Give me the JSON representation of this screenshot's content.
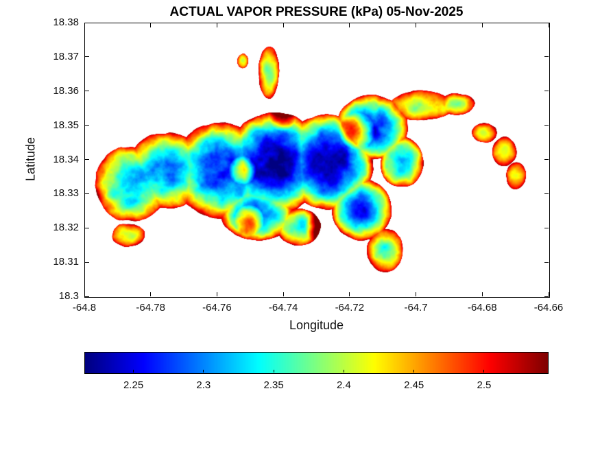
{
  "chart_data": {
    "type": "heatmap",
    "title": "ACTUAL VAPOR PRESSURE (kPa) 05-Nov-2025",
    "xlabel": "Longitude",
    "ylabel": "Latitude",
    "xlim": [
      -64.8,
      -64.66
    ],
    "ylim": [
      18.3,
      18.38
    ],
    "xticks": [
      -64.8,
      -64.78,
      -64.76,
      -64.74,
      -64.72,
      -64.7,
      -64.68,
      -64.66
    ],
    "xtick_labels": [
      "-64.8",
      "-64.78",
      "-64.76",
      "-64.74",
      "-64.72",
      "-64.7",
      "-64.68",
      "-64.66"
    ],
    "yticks": [
      18.3,
      18.31,
      18.32,
      18.33,
      18.34,
      18.35,
      18.36,
      18.37,
      18.38
    ],
    "ytick_labels": [
      "18.3",
      "18.31",
      "18.32",
      "18.33",
      "18.34",
      "18.35",
      "18.36",
      "18.37",
      "18.38"
    ],
    "grid": false,
    "colormap": "jet",
    "background_color": "#ffffff",
    "axis_color": "#000000",
    "colorbar": {
      "orientation": "horizontal",
      "range": [
        2.215,
        2.545
      ],
      "ticks": [
        2.25,
        2.3,
        2.35,
        2.4,
        2.45,
        2.5
      ],
      "tick_labels": [
        "2.25",
        "2.3",
        "2.35",
        "2.4",
        "2.45",
        "2.5"
      ]
    },
    "value_field": {
      "units": "kPa",
      "coast_value": 2.53,
      "interior_min_value": 2.22,
      "description": "Island-shaped vapor pressure map: values are highest (dark red, about 2.5 kPa) along the coastline and in lowland patches, and lowest (dark blue, about 2.22-2.25 kPa) in the island interior; white is no-data (ocean).",
      "island_blobs": [
        [
          -64.786,
          18.333,
          0.011,
          0.011,
          0.6
        ],
        [
          -64.775,
          18.337,
          0.013,
          0.011,
          0.65
        ],
        [
          -64.787,
          18.318,
          0.005,
          0.0035,
          0.3
        ],
        [
          -64.759,
          18.337,
          0.015,
          0.014,
          0.8
        ],
        [
          -64.743,
          18.339,
          0.015,
          0.015,
          1.0
        ],
        [
          -64.748,
          18.3245,
          0.011,
          0.008,
          0.7
        ],
        [
          -64.7445,
          18.3655,
          0.0032,
          0.0075,
          0.35
        ],
        [
          -64.7525,
          18.369,
          0.0018,
          0.0022,
          0.25
        ],
        [
          -64.727,
          18.3395,
          0.014,
          0.014,
          1.0
        ],
        [
          -64.7135,
          18.3495,
          0.011,
          0.0095,
          0.85
        ],
        [
          -64.6985,
          18.356,
          0.0095,
          0.0045,
          0.35
        ],
        [
          -64.688,
          18.3565,
          0.0055,
          0.0032,
          0.3
        ],
        [
          -64.7165,
          18.3255,
          0.009,
          0.009,
          0.8
        ],
        [
          -64.7095,
          18.3135,
          0.0055,
          0.0065,
          0.4
        ],
        [
          -64.7355,
          18.3205,
          0.0065,
          0.0055,
          0.5
        ],
        [
          -64.7045,
          18.3395,
          0.0065,
          0.0075,
          0.6
        ],
        [
          -64.6795,
          18.348,
          0.004,
          0.003,
          0.3
        ],
        [
          -64.6735,
          18.3425,
          0.0038,
          0.0045,
          0.3
        ],
        [
          -64.67,
          18.3355,
          0.0032,
          0.0042,
          0.28
        ]
      ],
      "hot_spots": [
        [
          -64.718,
          18.3485,
          0.0055,
          0.17
        ],
        [
          -64.7525,
          18.337,
          0.0042,
          0.13
        ],
        [
          -64.7505,
          18.3225,
          0.0045,
          0.16
        ],
        [
          -64.729,
          18.3205,
          0.0048,
          0.13
        ],
        [
          -64.7405,
          18.3525,
          0.004,
          0.11
        ]
      ]
    }
  }
}
